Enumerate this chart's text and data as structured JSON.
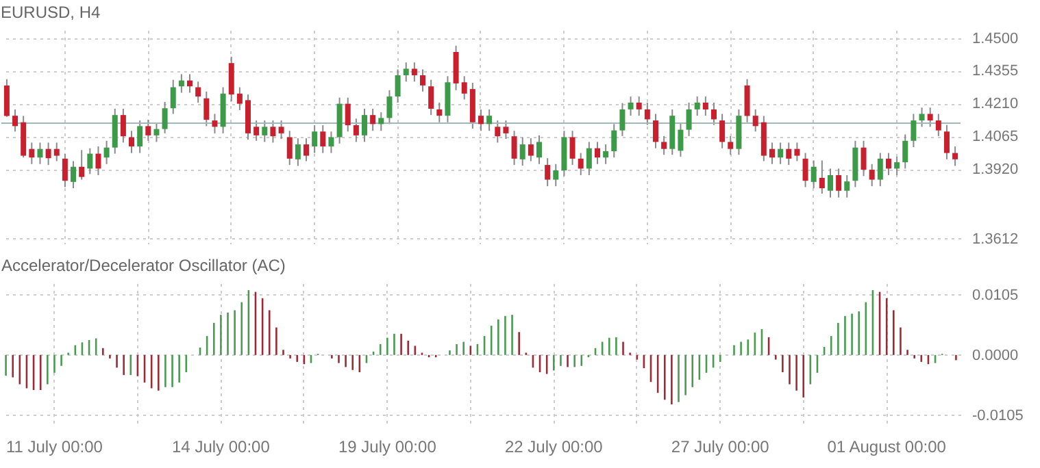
{
  "chart_data": [
    {
      "type": "candlestick",
      "title": "EURUSD, H4",
      "categories": [
        null,
        null,
        null,
        null,
        null,
        null,
        null,
        null,
        null,
        null,
        null,
        null,
        null,
        null,
        null,
        null,
        null,
        null,
        null,
        null,
        null,
        null,
        null,
        null,
        null,
        null,
        null,
        null,
        null,
        null,
        null,
        null,
        null,
        null,
        null,
        null,
        null,
        null,
        null,
        null,
        null,
        null,
        null,
        null,
        null,
        null,
        null,
        null,
        null,
        null,
        null,
        null,
        null,
        null,
        null,
        null,
        null,
        null,
        null,
        null,
        null,
        null,
        null,
        null,
        null,
        null,
        null,
        null,
        null,
        null,
        null,
        null,
        null,
        null,
        null,
        null,
        null,
        null,
        null,
        null,
        null,
        null,
        null,
        null,
        null,
        null,
        null,
        null,
        null,
        null,
        null,
        null,
        null,
        null,
        null,
        null,
        null,
        null,
        null,
        null,
        null,
        null,
        null,
        null,
        null,
        null,
        null,
        null,
        null,
        null,
        null,
        null,
        null,
        null,
        null
      ],
      "ohlc": [
        [
          1.429,
          1.4318,
          1.4151,
          1.4155
        ],
        [
          1.4156,
          1.4184,
          1.4086,
          1.411
        ],
        [
          1.4127,
          1.4155,
          1.3971,
          1.3979
        ],
        [
          1.4009,
          1.4037,
          1.3942,
          1.3971
        ],
        [
          1.3971,
          1.4037,
          1.3942,
          1.4009
        ],
        [
          1.4009,
          1.4037,
          1.3938,
          1.3968
        ],
        [
          1.4009,
          1.4037,
          1.3955,
          1.3979
        ],
        [
          1.3966,
          1.3988,
          1.384,
          1.3868
        ],
        [
          1.3863,
          1.3955,
          1.3835,
          1.393
        ],
        [
          1.393,
          1.4004,
          1.3873,
          1.3885
        ],
        [
          1.3922,
          1.4012,
          1.3898,
          1.3988
        ],
        [
          1.3988,
          1.402,
          1.3893,
          1.3922
        ],
        [
          1.3971,
          1.4045,
          1.3942,
          1.4015
        ],
        [
          1.4015,
          1.4187,
          1.3988,
          1.4159
        ],
        [
          1.4159,
          1.4187,
          1.4037,
          1.4065
        ],
        [
          1.4061,
          1.4089,
          1.3991,
          1.402
        ],
        [
          1.402,
          1.4135,
          1.3991,
          1.411
        ],
        [
          1.411,
          1.4138,
          1.4045,
          1.4069
        ],
        [
          1.4069,
          1.4122,
          1.404,
          1.4097
        ],
        [
          1.4097,
          1.4217,
          1.4078,
          1.4189
        ],
        [
          1.4189,
          1.4315,
          1.4164,
          1.4282
        ],
        [
          1.4286,
          1.434,
          1.4258,
          1.4312
        ],
        [
          1.4312,
          1.434,
          1.4258,
          1.4286
        ],
        [
          1.4282,
          1.4307,
          1.4214,
          1.4241
        ],
        [
          1.4233,
          1.4263,
          1.411,
          1.4138
        ],
        [
          1.4135,
          1.4164,
          1.4078,
          1.4107
        ],
        [
          1.4107,
          1.4282,
          1.4078,
          1.4254
        ],
        [
          1.4389,
          1.4417,
          1.422,
          1.425
        ],
        [
          1.4254,
          1.4282,
          1.4181,
          1.4209
        ],
        [
          1.4225,
          1.425,
          1.405,
          1.4078
        ],
        [
          1.4107,
          1.4135,
          1.4045,
          1.4069
        ],
        [
          1.4069,
          1.4135,
          1.404,
          1.4107
        ],
        [
          1.4107,
          1.4135,
          1.4037,
          1.4065
        ],
        [
          1.4107,
          1.4135,
          1.4053,
          1.4078
        ],
        [
          1.4061,
          1.4089,
          1.3938,
          1.3966
        ],
        [
          1.3963,
          1.4056,
          1.3934,
          1.4029
        ],
        [
          1.4029,
          1.4056,
          1.3955,
          1.3979
        ],
        [
          1.402,
          1.4114,
          1.3991,
          1.4086
        ],
        [
          1.4086,
          1.4114,
          1.3991,
          1.402
        ],
        [
          1.402,
          1.4086,
          1.3991,
          1.4061
        ],
        [
          1.4061,
          1.4236,
          1.4033,
          1.4209
        ],
        [
          1.4209,
          1.4236,
          1.4086,
          1.4114
        ],
        [
          1.4114,
          1.4143,
          1.404,
          1.4069
        ],
        [
          1.4069,
          1.4187,
          1.404,
          1.4159
        ],
        [
          1.4159,
          1.4187,
          1.4089,
          1.4119
        ],
        [
          1.4119,
          1.4171,
          1.4089,
          1.4146
        ],
        [
          1.4146,
          1.4269,
          1.4119,
          1.4241
        ],
        [
          1.4241,
          1.4361,
          1.4214,
          1.4335
        ],
        [
          1.4335,
          1.4392,
          1.4307,
          1.4364
        ],
        [
          1.4364,
          1.4392,
          1.4307,
          1.4335
        ],
        [
          1.4335,
          1.4361,
          1.4263,
          1.429
        ],
        [
          1.4286,
          1.4315,
          1.4159,
          1.4187
        ],
        [
          1.4184,
          1.4214,
          1.4127,
          1.4156
        ],
        [
          1.4156,
          1.4331,
          1.4127,
          1.4304
        ],
        [
          1.4438,
          1.4466,
          1.4269,
          1.4299
        ],
        [
          1.4304,
          1.4331,
          1.4228,
          1.4254
        ],
        [
          1.4274,
          1.4302,
          1.4099,
          1.4127
        ],
        [
          1.4156,
          1.4184,
          1.4089,
          1.4119
        ],
        [
          1.4119,
          1.4184,
          1.4089,
          1.4156
        ],
        [
          1.4107,
          1.4135,
          1.4037,
          1.4065
        ],
        [
          1.4107,
          1.4135,
          1.4053,
          1.4078
        ],
        [
          1.4065,
          1.4089,
          1.3938,
          1.3966
        ],
        [
          1.3963,
          1.4061,
          1.3935,
          1.4029
        ],
        [
          1.4029,
          1.4056,
          1.3955,
          1.3979
        ],
        [
          1.3971,
          1.4069,
          1.3942,
          1.404
        ],
        [
          1.3938,
          1.3968,
          1.3844,
          1.3873
        ],
        [
          1.3873,
          1.3942,
          1.3844,
          1.3914
        ],
        [
          1.3914,
          1.4089,
          1.3889,
          1.4061
        ],
        [
          1.4061,
          1.4089,
          1.3938,
          1.3966
        ],
        [
          1.3966,
          1.3991,
          1.3893,
          1.3922
        ],
        [
          1.3922,
          1.404,
          1.3893,
          1.4012
        ],
        [
          1.4012,
          1.404,
          1.3942,
          1.3971
        ],
        [
          1.3971,
          1.4029,
          1.3942,
          1.3999
        ],
        [
          1.3999,
          1.4119,
          1.3971,
          1.4091
        ],
        [
          1.4091,
          1.4212,
          1.4066,
          1.4184
        ],
        [
          1.4184,
          1.4241,
          1.4156,
          1.4214
        ],
        [
          1.4214,
          1.4241,
          1.4156,
          1.4184
        ],
        [
          1.4184,
          1.4214,
          1.4115,
          1.414
        ],
        [
          1.4135,
          1.4164,
          1.4012,
          1.404
        ],
        [
          1.404,
          1.4066,
          1.3983,
          1.4009
        ],
        [
          1.4009,
          1.4184,
          1.3983,
          1.4156
        ],
        [
          1.4001,
          1.4122,
          1.3975,
          1.4094
        ],
        [
          1.4094,
          1.4214,
          1.4066,
          1.4184
        ],
        [
          1.4184,
          1.4241,
          1.4156,
          1.4214
        ],
        [
          1.4214,
          1.4241,
          1.4156,
          1.4184
        ],
        [
          1.4184,
          1.4214,
          1.4115,
          1.414
        ],
        [
          1.4135,
          1.4164,
          1.4012,
          1.404
        ],
        [
          1.404,
          1.4066,
          1.3983,
          1.4009
        ],
        [
          1.4009,
          1.4184,
          1.3983,
          1.4156
        ],
        [
          1.429,
          1.4318,
          1.4127,
          1.4155
        ],
        [
          1.4156,
          1.4184,
          1.4086,
          1.411
        ],
        [
          1.4127,
          1.4155,
          1.3955,
          1.3979
        ],
        [
          1.4009,
          1.4037,
          1.3942,
          1.3971
        ],
        [
          1.3971,
          1.4037,
          1.3942,
          1.4009
        ],
        [
          1.4009,
          1.4037,
          1.3938,
          1.3966
        ],
        [
          1.4009,
          1.4037,
          1.3955,
          1.3979
        ],
        [
          1.3966,
          1.3991,
          1.384,
          1.3868
        ],
        [
          1.3863,
          1.3958,
          1.3835,
          1.393
        ],
        [
          1.3881,
          1.3958,
          1.3811,
          1.3835
        ],
        [
          1.3824,
          1.3922,
          1.3794,
          1.3893
        ],
        [
          1.3893,
          1.3922,
          1.3794,
          1.3824
        ],
        [
          1.3824,
          1.3893,
          1.3794,
          1.3865
        ],
        [
          1.3868,
          1.4045,
          1.384,
          1.4015
        ],
        [
          1.4015,
          1.4045,
          1.3889,
          1.3917
        ],
        [
          1.3917,
          1.3942,
          1.3844,
          1.3873
        ],
        [
          1.3873,
          1.3991,
          1.3844,
          1.3966
        ],
        [
          1.3966,
          1.3991,
          1.3893,
          1.3922
        ],
        [
          1.3922,
          1.3975,
          1.3893,
          1.395
        ],
        [
          1.395,
          1.4073,
          1.3922,
          1.4045
        ],
        [
          1.4045,
          1.4164,
          1.4017,
          1.4135
        ],
        [
          1.4135,
          1.4192,
          1.4107,
          1.4164
        ],
        [
          1.4164,
          1.4192,
          1.4107,
          1.4135
        ],
        [
          1.4135,
          1.4164,
          1.4066,
          1.4091
        ],
        [
          1.4086,
          1.4115,
          1.3963,
          1.3991
        ],
        [
          1.3991,
          1.402,
          1.3934,
          1.3963
        ]
      ],
      "colors": [
        "#c8202e",
        "#c8202e",
        "#c8202e",
        "#c8202e",
        "#3d9a48",
        "#c8202e",
        "#c8202e",
        "#c8202e",
        "#3d9a48",
        "#c8202e",
        "#3d9a48",
        "#c8202e",
        "#3d9a48",
        "#3d9a48",
        "#c8202e",
        "#c8202e",
        "#3d9a48",
        "#c8202e",
        "#3d9a48",
        "#3d9a48",
        "#3d9a48",
        "#3d9a48",
        "#c8202e",
        "#c8202e",
        "#c8202e",
        "#c8202e",
        "#3d9a48",
        "#c8202e",
        "#c8202e",
        "#c8202e",
        "#c8202e",
        "#3d9a48",
        "#c8202e",
        "#c8202e",
        "#c8202e",
        "#3d9a48",
        "#c8202e",
        "#3d9a48",
        "#c8202e",
        "#3d9a48",
        "#3d9a48",
        "#c8202e",
        "#c8202e",
        "#3d9a48",
        "#c8202e",
        "#3d9a48",
        "#3d9a48",
        "#3d9a48",
        "#3d9a48",
        "#c8202e",
        "#c8202e",
        "#c8202e",
        "#c8202e",
        "#3d9a48",
        "#c8202e",
        "#c8202e",
        "#c8202e",
        "#c8202e",
        "#3d9a48",
        "#c8202e",
        "#c8202e",
        "#c8202e",
        "#3d9a48",
        "#c8202e",
        "#3d9a48",
        "#c8202e",
        "#3d9a48",
        "#3d9a48",
        "#c8202e",
        "#c8202e",
        "#3d9a48",
        "#c8202e",
        "#3d9a48",
        "#3d9a48",
        "#3d9a48",
        "#3d9a48",
        "#c8202e",
        "#c8202e",
        "#c8202e",
        "#c8202e",
        "#3d9a48",
        "#3d9a48",
        "#3d9a48",
        "#3d9a48",
        "#c8202e",
        "#c8202e",
        "#c8202e",
        "#c8202e",
        "#3d9a48",
        "#c8202e",
        "#c8202e",
        "#c8202e",
        "#c8202e",
        "#3d9a48",
        "#c8202e",
        "#c8202e",
        "#c8202e",
        "#3d9a48",
        "#c8202e",
        "#3d9a48",
        "#c8202e",
        "#3d9a48",
        "#3d9a48",
        "#c8202e",
        "#c8202e",
        "#3d9a48",
        "#c8202e",
        "#3d9a48",
        "#3d9a48",
        "#3d9a48",
        "#3d9a48",
        "#c8202e",
        "#c8202e",
        "#c8202e",
        "#c8202e"
      ],
      "ylim": [
        1.359,
        1.4535
      ],
      "yticks": [
        {
          "value": 1.45,
          "label": "1.4500"
        },
        {
          "value": 1.4355,
          "label": "1.4355"
        },
        {
          "value": 1.421,
          "label": "1.4210"
        },
        {
          "value": 1.4065,
          "label": "1.4065"
        },
        {
          "value": 1.392,
          "label": "1.3920"
        },
        {
          "value": 1.3612,
          "label": "1.3612"
        }
      ],
      "ref_lines": [
        {
          "axis": "y",
          "value": 1.4123,
          "color": "#9fb6ba"
        }
      ],
      "grid": true,
      "tick_labels": "y"
    },
    {
      "type": "bar",
      "title": "Accelerator/Decelerator Oscillator (AC)",
      "categories": [
        null,
        null,
        null,
        null,
        null,
        null,
        null,
        "11 July 00:00",
        null,
        null,
        null,
        null,
        null,
        null,
        null,
        null,
        null,
        null,
        null,
        null,
        null,
        null,
        null,
        null,
        null,
        null,
        null,
        null,
        null,
        null,
        null,
        "14 July 00:00",
        null,
        null,
        null,
        null,
        null,
        null,
        null,
        null,
        null,
        null,
        null,
        null,
        null,
        null,
        null,
        null,
        null,
        null,
        null,
        null,
        null,
        null,
        null,
        "19 July 00:00",
        null,
        null,
        null,
        null,
        null,
        null,
        null,
        null,
        null,
        null,
        null,
        null,
        null,
        null,
        null,
        null,
        null,
        null,
        null,
        null,
        null,
        null,
        null,
        "22 July 00:00",
        null,
        null,
        null,
        null,
        null,
        null,
        null,
        null,
        null,
        null,
        null,
        null,
        null,
        null,
        null,
        null,
        null,
        null,
        null,
        null,
        null,
        null,
        null,
        "27 July 00:00",
        null,
        null,
        null,
        null,
        null,
        null,
        null,
        null,
        null,
        null,
        null,
        null,
        null,
        null,
        null,
        null,
        null,
        null,
        null,
        null,
        null,
        null,
        null,
        "01 August 00:00",
        null,
        null,
        null,
        null,
        null,
        null,
        null,
        null,
        null,
        null
      ],
      "values": [
        -0.0036,
        -0.0039,
        -0.0051,
        -0.0058,
        -0.0061,
        -0.0061,
        -0.0051,
        -0.0031,
        -0.0019,
        0.0004,
        0.0017,
        0.0022,
        0.0026,
        0.0029,
        0.0012,
        -0.0006,
        -0.0022,
        -0.0035,
        -0.0035,
        -0.0037,
        -0.0048,
        -0.0058,
        -0.0062,
        -0.0056,
        -0.0056,
        -0.0048,
        -0.003,
        null,
        0.0013,
        0.0033,
        0.0056,
        0.007,
        0.0074,
        0.0078,
        0.0092,
        0.0113,
        0.011,
        0.0099,
        0.0078,
        0.0048,
        0.0009,
        -0.0006,
        -0.0012,
        -0.0016,
        -0.0014,
        0.0002,
        null,
        -0.0006,
        -0.0014,
        -0.0021,
        -0.0026,
        -0.003,
        -0.0014,
        0.0006,
        0.0019,
        0.003,
        0.0037,
        0.0037,
        0.0025,
        0.0016,
        0.0004,
        -0.0004,
        -0.0004,
        null,
        0.0008,
        0.0019,
        0.0023,
        0.0016,
        0.0019,
        0.0033,
        0.0051,
        0.0062,
        0.0068,
        0.007,
        0.004,
        0.0004,
        -0.0022,
        -0.003,
        -0.0033,
        -0.0027,
        -0.0019,
        -0.0021,
        -0.0021,
        -0.0019,
        -0.0004,
        0.0012,
        0.0023,
        0.003,
        0.0031,
        0.0023,
        0.0004,
        -0.0008,
        -0.0023,
        -0.0047,
        -0.0066,
        -0.0078,
        -0.0086,
        -0.0082,
        -0.007,
        -0.0056,
        -0.0043,
        -0.0031,
        -0.0022,
        -0.0012,
        null,
        0.0017,
        0.0023,
        0.0027,
        0.0039,
        0.0045,
        0.0031,
        -0.0008,
        -0.003,
        -0.0051,
        -0.0062,
        -0.0074,
        -0.0051,
        -0.0031,
        0.0014,
        0.0033,
        0.0056,
        0.0068,
        0.0072,
        0.0076,
        0.0092,
        0.0113,
        0.011,
        0.0099,
        0.0078,
        0.0048,
        0.0009,
        -0.0006,
        -0.0012,
        -0.0016,
        -0.0014,
        0.0002,
        null,
        -0.0009
      ],
      "colors": [
        "#4a9a52",
        "#9e2a36",
        "#9e2a36",
        "#9e2a36",
        "#9e2a36",
        "#9e2a36",
        "#4a9a52",
        "#4a9a52",
        "#4a9a52",
        "#4a9a52",
        "#4a9a52",
        "#4a9a52",
        "#4a9a52",
        "#4a9a52",
        "#9e2a36",
        "#9e2a36",
        "#9e2a36",
        "#9e2a36",
        "#4a9a52",
        "#9e2a36",
        "#9e2a36",
        "#9e2a36",
        "#9e2a36",
        "#4a9a52",
        "#4a9a52",
        "#4a9a52",
        "#4a9a52",
        "#4a9a52",
        "#4a9a52",
        "#4a9a52",
        "#4a9a52",
        "#4a9a52",
        "#4a9a52",
        "#4a9a52",
        "#4a9a52",
        "#4a9a52",
        "#9e2a36",
        "#9e2a36",
        "#9e2a36",
        "#9e2a36",
        "#9e2a36",
        "#9e2a36",
        "#9e2a36",
        "#9e2a36",
        "#4a9a52",
        "#4a9a52",
        "#9e2a36",
        "#9e2a36",
        "#9e2a36",
        "#9e2a36",
        "#9e2a36",
        "#9e2a36",
        "#4a9a52",
        "#4a9a52",
        "#4a9a52",
        "#4a9a52",
        "#4a9a52",
        "#9e2a36",
        "#9e2a36",
        "#9e2a36",
        "#9e2a36",
        "#9e2a36",
        "#9e2a36",
        "#4a9a52",
        "#4a9a52",
        "#4a9a52",
        "#4a9a52",
        "#9e2a36",
        "#4a9a52",
        "#4a9a52",
        "#4a9a52",
        "#4a9a52",
        "#4a9a52",
        "#4a9a52",
        "#9e2a36",
        "#9e2a36",
        "#9e2a36",
        "#9e2a36",
        "#9e2a36",
        "#4a9a52",
        "#4a9a52",
        "#9e2a36",
        "#4a9a52",
        "#4a9a52",
        "#4a9a52",
        "#4a9a52",
        "#4a9a52",
        "#4a9a52",
        "#4a9a52",
        "#9e2a36",
        "#9e2a36",
        "#9e2a36",
        "#9e2a36",
        "#9e2a36",
        "#9e2a36",
        "#9e2a36",
        "#9e2a36",
        "#4a9a52",
        "#4a9a52",
        "#4a9a52",
        "#4a9a52",
        "#4a9a52",
        "#4a9a52",
        "#4a9a52",
        "#4a9a52",
        "#4a9a52",
        "#4a9a52",
        "#4a9a52",
        "#4a9a52",
        "#4a9a52",
        "#9e2a36",
        "#9e2a36",
        "#9e2a36",
        "#9e2a36",
        "#9e2a36",
        "#9e2a36",
        "#4a9a52",
        "#4a9a52",
        "#4a9a52",
        "#4a9a52",
        "#4a9a52",
        "#4a9a52",
        "#4a9a52",
        "#4a9a52",
        "#4a9a52",
        "#4a9a52",
        "#9e2a36",
        "#9e2a36",
        "#9e2a36",
        "#9e2a36",
        "#9e2a36",
        "#9e2a36",
        "#9e2a36",
        "#9e2a36",
        "#4a9a52",
        "#4a9a52",
        "#9e2a36",
        "#9e2a36"
      ],
      "ylim": [
        -0.0123,
        0.0125
      ],
      "yticks": [
        0.0105,
        {
          "value": 0,
          "label": "0.0000"
        },
        -0.0105
      ],
      "grid": true
    }
  ]
}
